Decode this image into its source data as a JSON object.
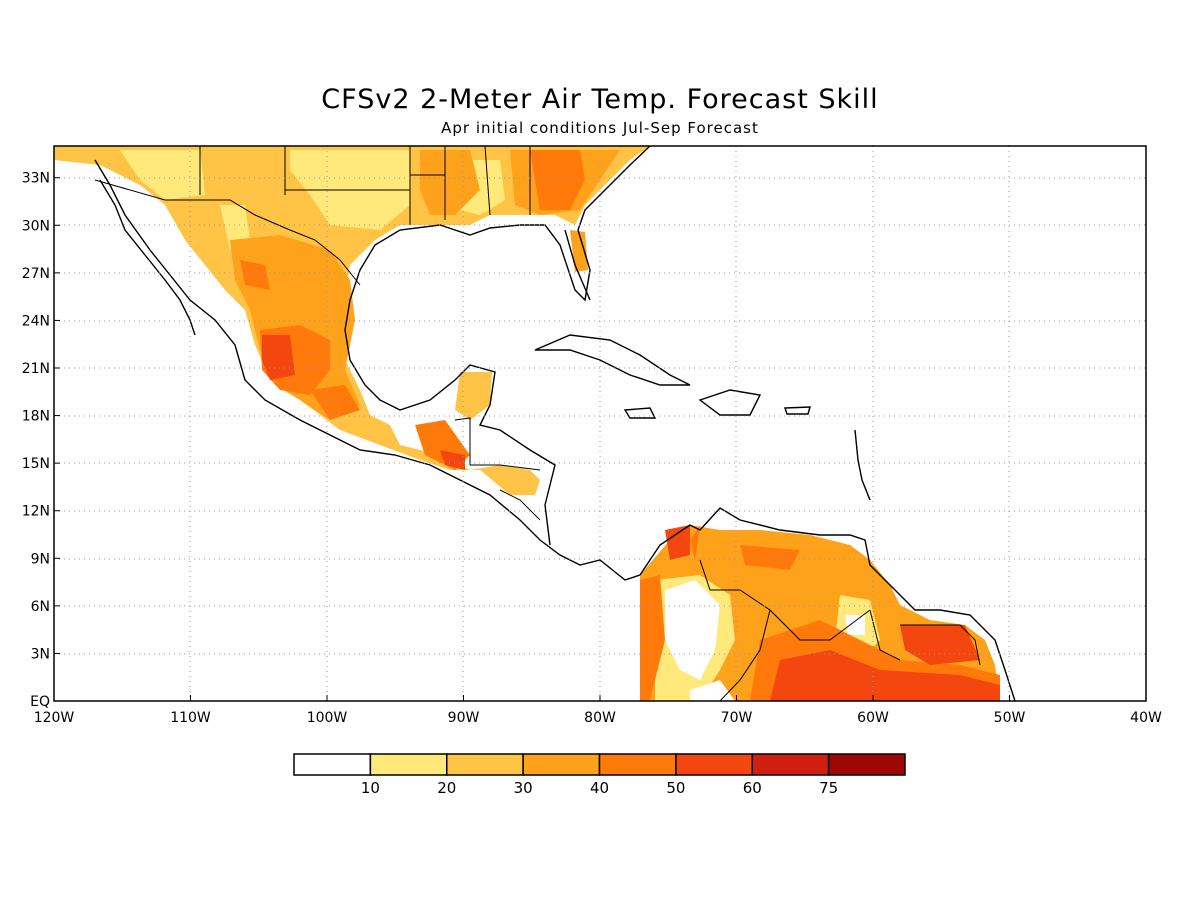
{
  "title": "CFSv2 2-Meter Air Temp. Forecast Skill",
  "subtitle": "Apr initial conditions  Jul-Sep Forecast",
  "map": {
    "lon_range": [
      -120,
      -40
    ],
    "lat_range": [
      0,
      35
    ],
    "x_ticks": [
      "120W",
      "110W",
      "100W",
      "90W",
      "80W",
      "70W",
      "60W",
      "50W",
      "40W"
    ],
    "y_ticks": [
      "EQ",
      "3N",
      "6N",
      "9N",
      "12N",
      "15N",
      "18N",
      "21N",
      "24N",
      "27N",
      "30N",
      "33N"
    ]
  },
  "colorbar": {
    "labels": [
      "10",
      "20",
      "30",
      "40",
      "50",
      "60",
      "75"
    ],
    "colors": [
      "#ffffff",
      "#ffe97a",
      "#ffc445",
      "#ffa21b",
      "#ff7a0a",
      "#f4460f",
      "#d01f0f",
      "#9e0606"
    ]
  }
}
